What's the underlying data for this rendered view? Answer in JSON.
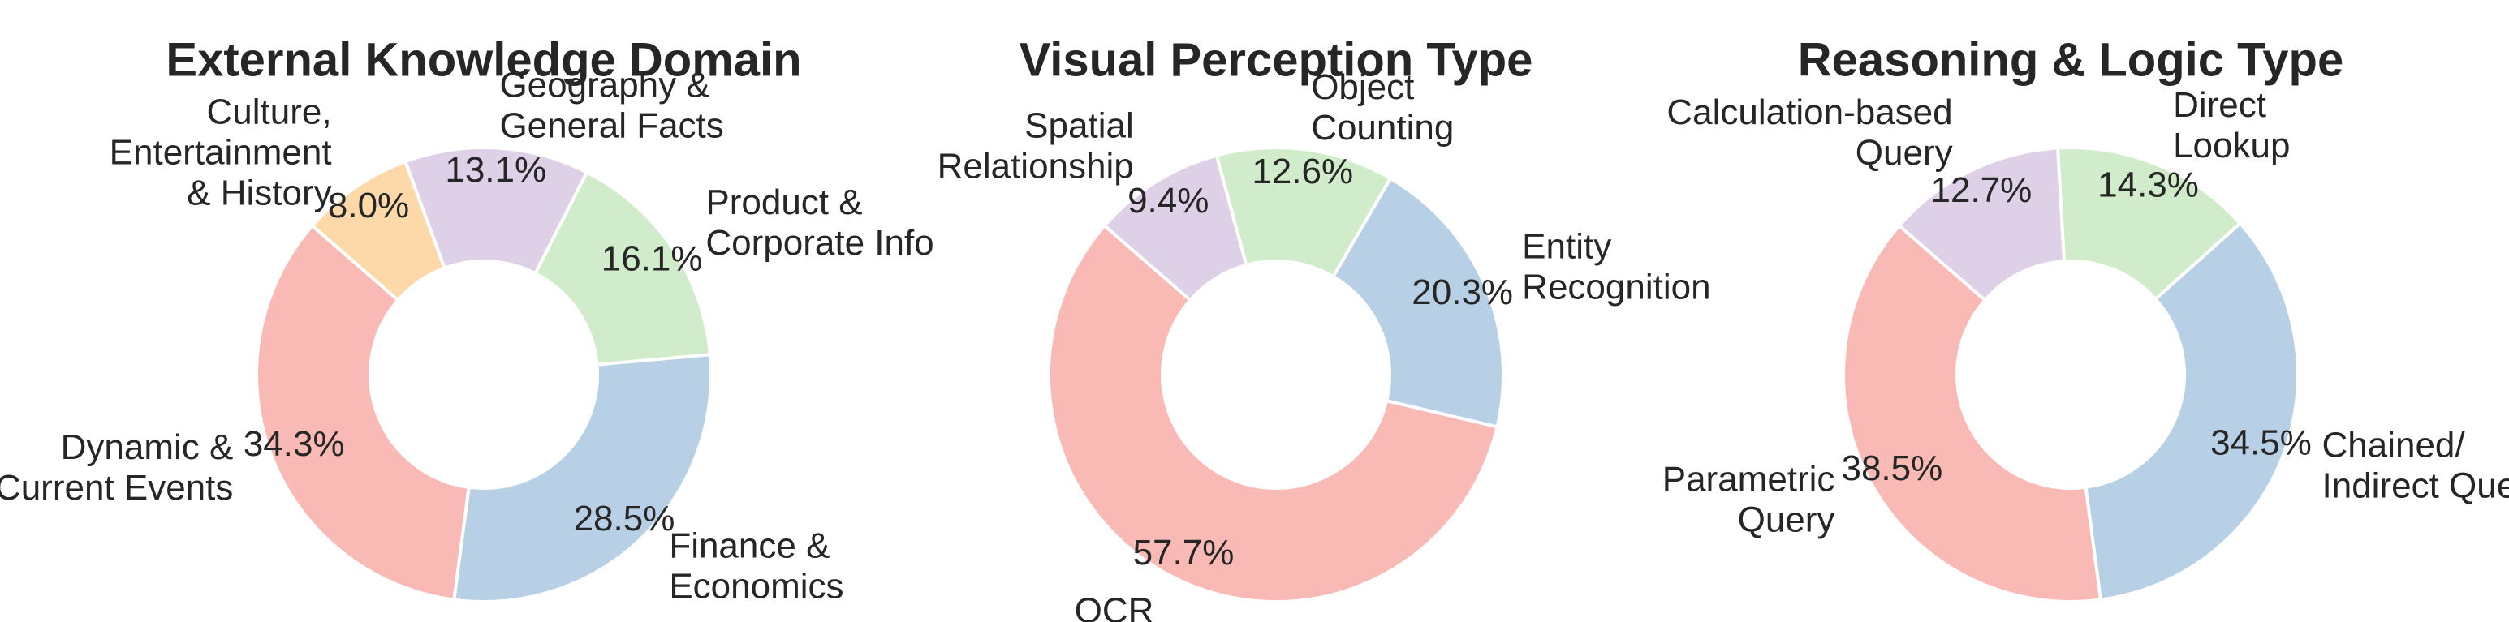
{
  "palette": {
    "pink": "#f9b9b5",
    "blue": "#b8d0e5",
    "green": "#d0ecca",
    "lavender": "#ded0e6",
    "peach": "#fdd9a9",
    "text": "#262626",
    "edge": "#ffffff"
  },
  "chart_data": [
    {
      "type": "pie",
      "style": "donut",
      "title": "External Knowledge Domain",
      "slices": [
        {
          "label": "Dynamic &\nCurrent Events",
          "value": 34.3,
          "pct_text": "34.3%",
          "color": "#f9b9b5"
        },
        {
          "label": "Finance &\nEconomics",
          "value": 28.5,
          "pct_text": "28.5%",
          "color": "#b8d0e5"
        },
        {
          "label": "Product &\nCorporate Info",
          "value": 16.1,
          "pct_text": "16.1%",
          "color": "#d0ecca"
        },
        {
          "label": "Geography &\nGeneral Facts",
          "value": 13.1,
          "pct_text": "13.1%",
          "color": "#ded0e6"
        },
        {
          "label": "Culture,\nEntertainment\n& History",
          "value": 8.0,
          "pct_text": "8.0%",
          "color": "#fdd9a9"
        }
      ]
    },
    {
      "type": "pie",
      "style": "donut",
      "title": "Visual Perception Type",
      "slices": [
        {
          "label": "OCR",
          "value": 57.7,
          "pct_text": "57.7%",
          "color": "#f9b9b5"
        },
        {
          "label": "Entity\nRecognition",
          "value": 20.3,
          "pct_text": "20.3%",
          "color": "#b8d0e5"
        },
        {
          "label": "Object\nCounting",
          "value": 12.6,
          "pct_text": "12.6%",
          "color": "#d0ecca"
        },
        {
          "label": "Spatial\nRelationship",
          "value": 9.4,
          "pct_text": "9.4%",
          "color": "#ded0e6"
        }
      ]
    },
    {
      "type": "pie",
      "style": "donut",
      "title": "Reasoning & Logic Type",
      "slices": [
        {
          "label": "Parametric\nQuery",
          "value": 38.5,
          "pct_text": "38.5%",
          "color": "#f9b9b5"
        },
        {
          "label": "Chained/\nIndirect Query",
          "value": 34.5,
          "pct_text": "34.5%",
          "color": "#b8d0e5"
        },
        {
          "label": "Direct\nLookup",
          "value": 14.3,
          "pct_text": "14.3%",
          "color": "#d0ecca"
        },
        {
          "label": "Calculation-based\nQuery",
          "value": 12.7,
          "pct_text": "12.7%",
          "color": "#ded0e6"
        }
      ]
    }
  ]
}
